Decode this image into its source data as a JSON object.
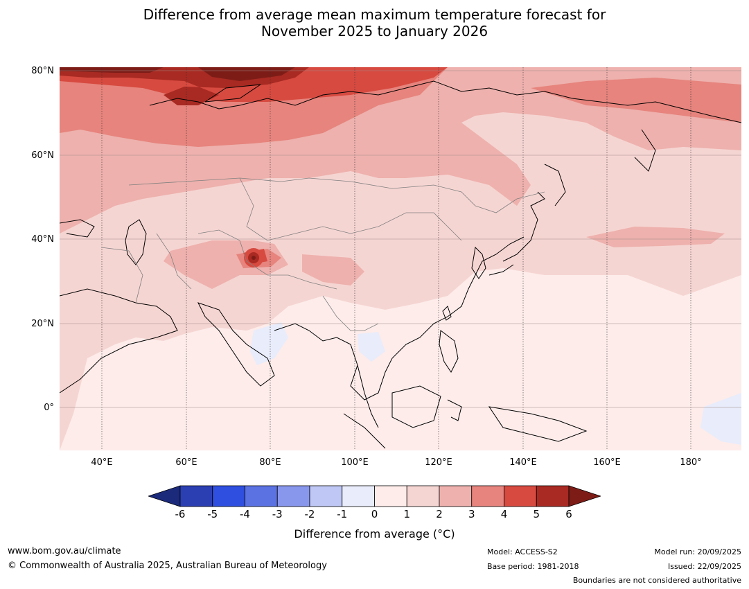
{
  "title": {
    "line1": "Difference from average mean maximum temperature forecast for",
    "line2": "November 2025 to January 2026"
  },
  "map": {
    "lat_labels": [
      "80°N",
      "60°N",
      "40°N",
      "20°N",
      "0°"
    ],
    "lon_labels": [
      "40°E",
      "60°E",
      "80°E",
      "100°E",
      "120°E",
      "140°E",
      "160°E",
      "180°"
    ],
    "extent": {
      "lon_min": 30,
      "lon_max": 192,
      "lat_min": -10,
      "lat_max": 80
    },
    "colors": {
      "ocean_base": "#fdecea",
      "cool_anom": "#e8ecfb",
      "warm_light": "#f5d5d2",
      "warm_mid": "#eeb1ad",
      "warm_strong": "#e6847d",
      "warm_high": "#d74a40",
      "warm_very_high": "#a82a22",
      "warm_extreme": "#7d1c17"
    }
  },
  "colorbar": {
    "ticks": [
      "-6",
      "-5",
      "-4",
      "-3",
      "-2",
      "-1",
      "0",
      "1",
      "2",
      "3",
      "4",
      "5",
      "6"
    ],
    "colors": [
      "#1b2a7a",
      "#2b3fb3",
      "#2f4fe0",
      "#5b72e3",
      "#8896ec",
      "#bfc7f5",
      "#e8ecfb",
      "#fdecea",
      "#f5d5d2",
      "#eeb1ad",
      "#e6847d",
      "#d74a40",
      "#a82a22",
      "#7d1c17"
    ],
    "label": "Difference from average (°C)"
  },
  "footer": {
    "website": "www.bom.gov.au/climate",
    "copyright": "© Commonwealth of Australia 2025, Australian Bureau of Meteorology",
    "model": "Model: ACCESS-S2",
    "base_period": "Base period: 1981-2018",
    "model_run": "Model run: 20/09/2025",
    "issued": "Issued: 22/09/2025",
    "disclaimer": "Boundaries are not considered authoritative"
  }
}
